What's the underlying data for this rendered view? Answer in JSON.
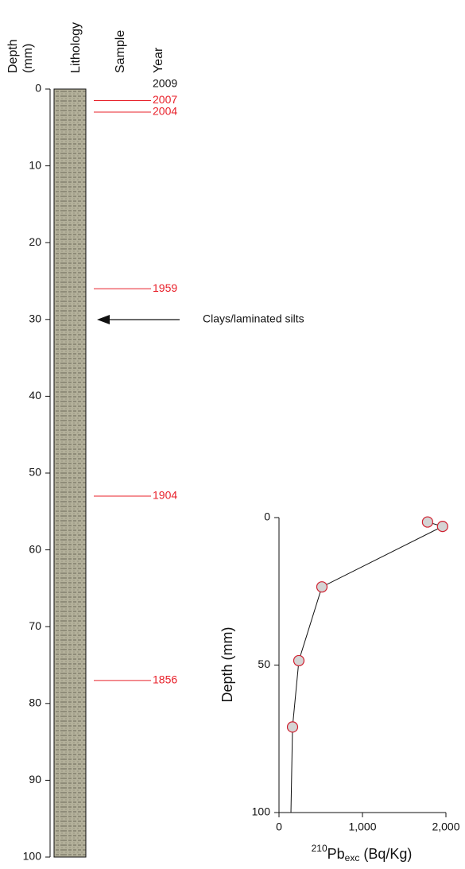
{
  "chart_data": [
    {
      "type": "core-log",
      "headers": [
        "Depth",
        "(mm)",
        "Lithology",
        "Sample",
        "Year"
      ],
      "ylim": [
        0,
        100
      ],
      "yticks": [
        0,
        10,
        20,
        30,
        40,
        50,
        60,
        70,
        80,
        90,
        100
      ],
      "years": [
        {
          "label": "2009",
          "depth": 0,
          "color": "#111111",
          "line": false
        },
        {
          "label": "2007",
          "depth": 1.5,
          "color": "#e8202a",
          "line": true
        },
        {
          "label": "2004",
          "depth": 3,
          "color": "#e8202a",
          "line": true
        },
        {
          "label": "1959",
          "depth": 26,
          "color": "#e8202a",
          "line": true
        },
        {
          "label": "1904",
          "depth": 53,
          "color": "#e8202a",
          "line": true
        },
        {
          "label": "1856",
          "depth": 77,
          "color": "#e8202a",
          "line": true
        }
      ],
      "annotation": "Clays/laminated silts"
    },
    {
      "type": "profile",
      "ylabel": "Depth (mm)",
      "xlabel": {
        "sup": "210",
        "base": "Pb",
        "sub": "exc",
        "rest": " (Bq/Kg)"
      },
      "xlim": [
        0,
        2000
      ],
      "xticks": [
        0,
        {
          "value": 1000,
          "label": "1,000"
        },
        {
          "value": 2000,
          "label": "2,000"
        }
      ],
      "ylim": [
        0,
        100
      ],
      "yticks": [
        0,
        50,
        100
      ],
      "y_inverted": true,
      "series": [
        {
          "x": [
            1780,
            1960,
            514,
            238,
            162
          ],
          "y": [
            1.5,
            3,
            23.5,
            48.5,
            71
          ],
          "marker": "circle",
          "color": "#d02030"
        },
        {
          "x": [
            162,
            143
          ],
          "y": [
            71,
            100
          ],
          "marker": "none",
          "color": "#111111"
        }
      ]
    }
  ]
}
